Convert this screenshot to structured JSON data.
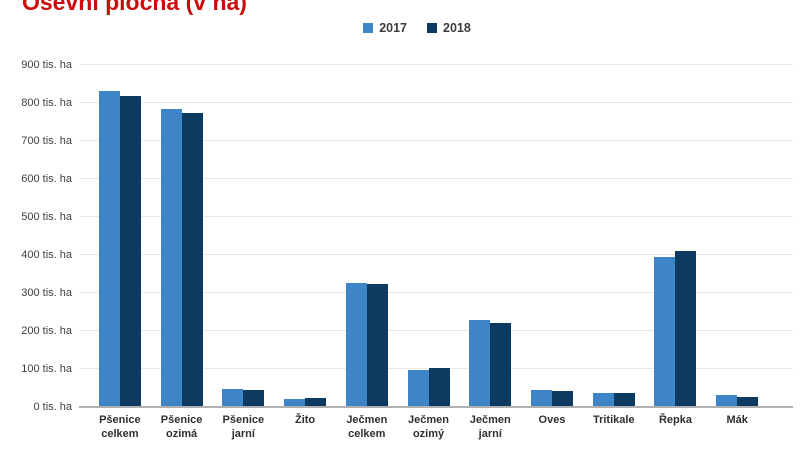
{
  "title": "Osevní plocha (v ha)",
  "colors": {
    "title": "#cc0d0d",
    "series_2017": "#3d85c6",
    "series_2018": "#0d3a61",
    "grid": "#e7e7e7",
    "axis_line": "#b0b0b0",
    "text": "#3b3b3b"
  },
  "chart_data": {
    "type": "bar",
    "title": "Osevní plocha (v ha)",
    "categories": [
      "Pšenice celkem",
      "Pšenice ozimá",
      "Pšenice jarní",
      "Žito",
      "Ječmen celkem",
      "Ječmen ozimý",
      "Ječmen jarní",
      "Oves",
      "Tritikale",
      "Řepka",
      "Mák"
    ],
    "series": [
      {
        "name": "2017",
        "color": "#3d85c6",
        "values": [
          832,
          785,
          47,
          21,
          327,
          98,
          229,
          44,
          36,
          394,
          32
        ]
      },
      {
        "name": "2018",
        "color": "#0d3a61",
        "values": [
          818,
          773,
          45,
          25,
          324,
          102,
          222,
          42,
          38,
          411,
          26
        ]
      }
    ],
    "ylabel": "",
    "xlabel": "",
    "ylim": [
      0,
      900
    ],
    "ytick_step": 100,
    "yticks": [
      "0 tis. ha",
      "100 tis. ha",
      "200 tis. ha",
      "300 tis. ha",
      "400 tis. ha",
      "500 tis. ha",
      "600 tis. ha",
      "700 tis. ha",
      "800 tis. ha",
      "900 tis. ha"
    ],
    "grid": true,
    "legend_position": "top"
  }
}
